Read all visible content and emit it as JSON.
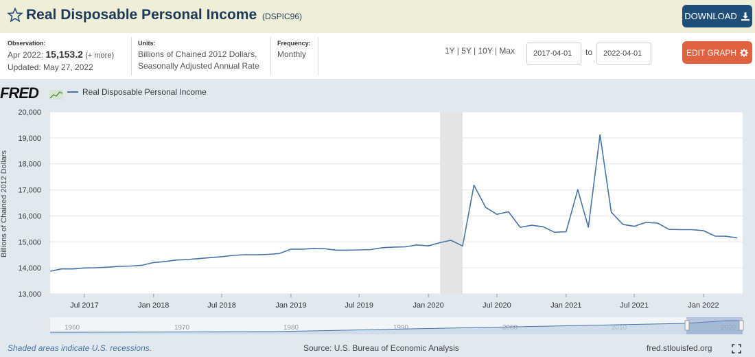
{
  "header": {
    "title": "Real Disposable Personal Income",
    "series_id": "(DSPIC96)",
    "download_label": "DOWNLOAD"
  },
  "info": {
    "observation_label": "Observation:",
    "observation_date": "Apr 2022:",
    "observation_value": "15,153.2",
    "observation_more": "(+ more)",
    "updated": "Updated: May 27, 2022",
    "units_label": "Units:",
    "units_line1": "Billions of Chained 2012 Dollars,",
    "units_line2": "Seasonally Adjusted Annual Rate",
    "frequency_label": "Frequency:",
    "frequency_value": "Monthly",
    "range_links": "1Y | 5Y | 10Y | Max",
    "start_date": "2017-04-01",
    "to_label": "to",
    "end_date": "2022-04-01",
    "edit_label": "EDIT GRAPH"
  },
  "footer": {
    "recession_note": "Shaded areas indicate U.S. recessions.",
    "source": "Source: U.S. Bureau of Economic Analysis",
    "site": "fred.stlouisfed.org"
  },
  "logo_text": "FRED",
  "colors": {
    "line": "#4572a7",
    "plot_background": "#ffffff",
    "chart_background": "#e1e9f0",
    "recession_shade": "#e4e4e4",
    "download_button": "#1f4e79",
    "edit_button": "#e0613e",
    "title_bar": "#eeeed9"
  },
  "chart_data": {
    "type": "line",
    "title": "",
    "xlabel": "",
    "ylabel": "Billions of Chained 2012 Dollars",
    "ylim": [
      13000,
      20000
    ],
    "xlim": [
      "2017-04-01",
      "2022-04-01"
    ],
    "grid": true,
    "legend_position": "top-left",
    "yticks": [
      "13,000",
      "14,000",
      "15,000",
      "16,000",
      "17,000",
      "18,000",
      "19,000",
      "20,000"
    ],
    "xticks": [
      {
        "label": "Jul 2017",
        "date": "2017-07-01"
      },
      {
        "label": "Jan 2018",
        "date": "2018-01-01"
      },
      {
        "label": "Jul 2018",
        "date": "2018-07-01"
      },
      {
        "label": "Jan 2019",
        "date": "2019-01-01"
      },
      {
        "label": "Jul 2019",
        "date": "2019-07-01"
      },
      {
        "label": "Jan 2020",
        "date": "2020-01-01"
      },
      {
        "label": "Jul 2020",
        "date": "2020-07-01"
      },
      {
        "label": "Jan 2021",
        "date": "2021-01-01"
      },
      {
        "label": "Jul 2021",
        "date": "2021-07-01"
      },
      {
        "label": "Jan 2022",
        "date": "2022-01-01"
      }
    ],
    "recessions": [
      {
        "start": "2020-02-01",
        "end": "2020-04-01"
      }
    ],
    "navigator_labels": [
      "1960",
      "1970",
      "1980",
      "1990",
      "2000",
      "2010",
      "2020"
    ],
    "series": [
      {
        "name": "Real Disposable Personal Income",
        "x": [
          "2017-04-01",
          "2017-05-01",
          "2017-06-01",
          "2017-07-01",
          "2017-08-01",
          "2017-09-01",
          "2017-10-01",
          "2017-11-01",
          "2017-12-01",
          "2018-01-01",
          "2018-02-01",
          "2018-03-01",
          "2018-04-01",
          "2018-05-01",
          "2018-06-01",
          "2018-07-01",
          "2018-08-01",
          "2018-09-01",
          "2018-10-01",
          "2018-11-01",
          "2018-12-01",
          "2019-01-01",
          "2019-02-01",
          "2019-03-01",
          "2019-04-01",
          "2019-05-01",
          "2019-06-01",
          "2019-07-01",
          "2019-08-01",
          "2019-09-01",
          "2019-10-01",
          "2019-11-01",
          "2019-12-01",
          "2020-01-01",
          "2020-02-01",
          "2020-03-01",
          "2020-04-01",
          "2020-05-01",
          "2020-06-01",
          "2020-07-01",
          "2020-08-01",
          "2020-09-01",
          "2020-10-01",
          "2020-11-01",
          "2020-12-01",
          "2021-01-01",
          "2021-02-01",
          "2021-03-01",
          "2021-04-01",
          "2021-05-01",
          "2021-06-01",
          "2021-07-01",
          "2021-08-01",
          "2021-09-01",
          "2021-10-01",
          "2021-11-01",
          "2021-12-01",
          "2022-01-01",
          "2022-02-01",
          "2022-03-01",
          "2022-04-01"
        ],
        "values": [
          13870,
          13960,
          13960,
          13995,
          14005,
          14025,
          14060,
          14070,
          14100,
          14205,
          14245,
          14300,
          14320,
          14355,
          14395,
          14430,
          14480,
          14505,
          14500,
          14520,
          14550,
          14720,
          14720,
          14745,
          14735,
          14680,
          14680,
          14690,
          14705,
          14775,
          14800,
          14810,
          14880,
          14845,
          14970,
          15060,
          14840,
          17180,
          16330,
          16060,
          16160,
          15560,
          15640,
          15580,
          15370,
          15390,
          17010,
          15560,
          19120,
          16140,
          15670,
          15600,
          15750,
          15720,
          15480,
          15470,
          15470,
          15430,
          15220,
          15215,
          15153
        ]
      }
    ]
  }
}
